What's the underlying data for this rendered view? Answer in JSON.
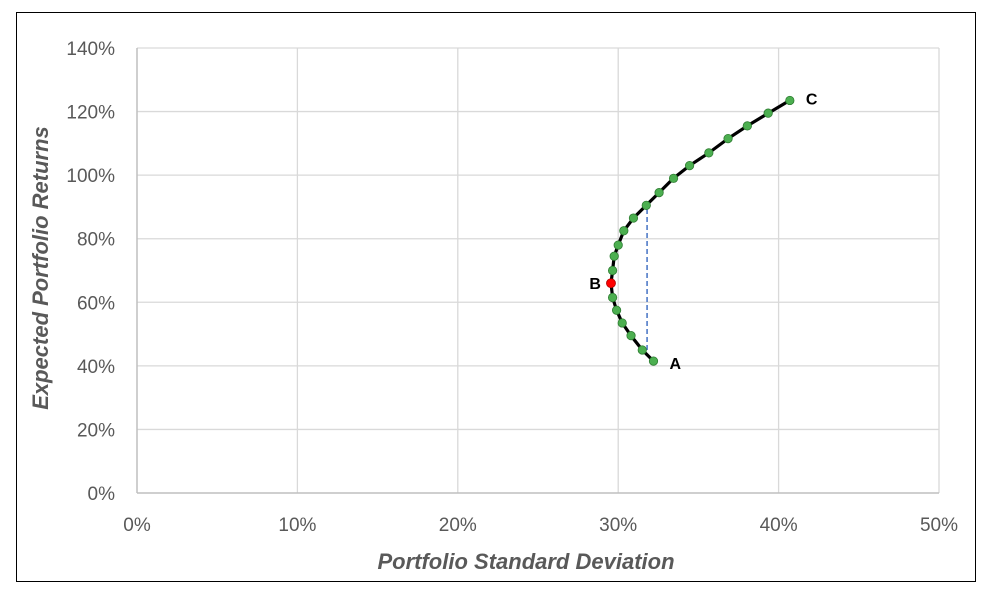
{
  "chart_data": {
    "type": "scatter",
    "title": "",
    "xlabel": "Portfolio Standard Deviation",
    "ylabel": "Expected Portfolio Returns",
    "xlim": [
      0,
      0.5
    ],
    "ylim": [
      0,
      1.4
    ],
    "x_ticks": [
      "0%",
      "10%",
      "20%",
      "30%",
      "40%",
      "50%"
    ],
    "y_ticks": [
      "0%",
      "20%",
      "40%",
      "60%",
      "80%",
      "100%",
      "120%",
      "140%"
    ],
    "x_tick_values": [
      0,
      0.1,
      0.2,
      0.3,
      0.4,
      0.5
    ],
    "y_tick_values": [
      0,
      0.2,
      0.4,
      0.6,
      0.8,
      1.0,
      1.2,
      1.4
    ],
    "grid": true,
    "colors": {
      "curve": "#000000",
      "points": "#4caf50",
      "min_variance": "#ff0000",
      "dashed": "#4472c4",
      "grid": "#d9d9d9"
    },
    "series": [
      {
        "x": [
          0.322,
          0.315,
          0.308,
          0.3025,
          0.299,
          0.2965,
          0.2955,
          0.2965,
          0.2975,
          0.3,
          0.3035,
          0.3095,
          0.3175,
          0.3255,
          0.3345,
          0.3445,
          0.3565,
          0.3685,
          0.3805,
          0.3935,
          0.407
        ],
        "y": [
          0.415,
          0.45,
          0.495,
          0.535,
          0.575,
          0.615,
          0.66,
          0.7,
          0.745,
          0.78,
          0.825,
          0.865,
          0.905,
          0.945,
          0.99,
          1.03,
          1.07,
          1.115,
          1.155,
          1.195,
          1.235
        ]
      }
    ],
    "min_variance_point": {
      "x": 0.2955,
      "y": 0.66
    },
    "dashed_line": {
      "x": 0.318,
      "y_from": 0.45,
      "y_to": 0.905
    },
    "annotations": [
      {
        "text": "A",
        "x": 0.322,
        "y": 0.415
      },
      {
        "text": "B",
        "x": 0.2955,
        "y": 0.66
      },
      {
        "text": "C",
        "x": 0.407,
        "y": 1.235
      }
    ]
  }
}
